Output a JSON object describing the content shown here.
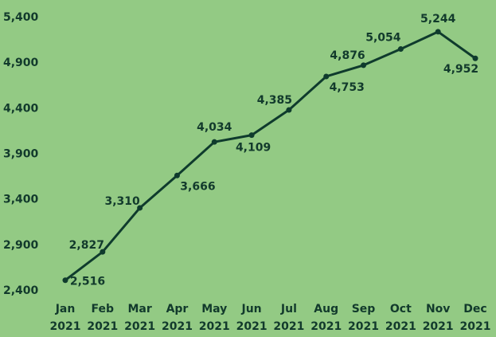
{
  "chart_data": {
    "type": "line",
    "categories": [
      "Jan 2021",
      "Feb 2021",
      "Mar 2021",
      "Apr 2021",
      "May 2021",
      "Jun 2021",
      "Jul 2021",
      "Aug 2021",
      "Sep 2021",
      "Oct 2021",
      "Nov 2021",
      "Dec 2021"
    ],
    "series": [
      {
        "color": "#0f3b2d",
        "values": [
          2516,
          2827,
          3310,
          3666,
          4034,
          4109,
          4385,
          4753,
          4876,
          5054,
          5244,
          4952
        ],
        "value_labels": [
          "2,516",
          "2,827",
          "3,310",
          "3,666",
          "4,034",
          "4,109",
          "4,385",
          "4,753",
          "4,876",
          "5,054",
          "5,244",
          "4,952"
        ]
      }
    ],
    "ylim": [
      2400,
      5400
    ],
    "yticks": [
      {
        "value": 2400,
        "label": "2,400"
      },
      {
        "value": 2900,
        "label": "2,900"
      },
      {
        "value": 3400,
        "label": "3,400"
      },
      {
        "value": 3900,
        "label": "3,900"
      },
      {
        "value": 4400,
        "label": "4,400"
      },
      {
        "value": 4900,
        "label": "4,900"
      },
      {
        "value": 5400,
        "label": "5,400"
      }
    ],
    "grid": false
  }
}
